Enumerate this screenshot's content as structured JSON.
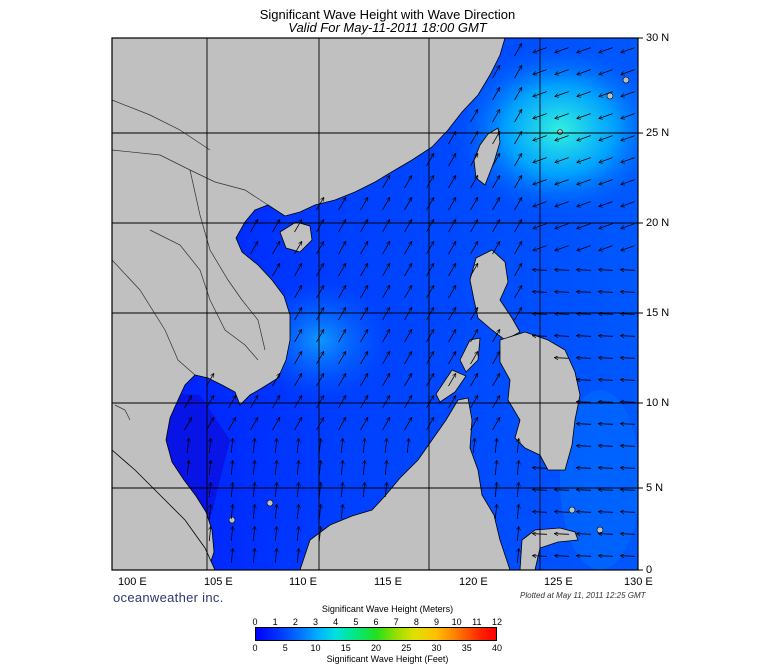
{
  "title": "Significant Wave Height with Wave Direction",
  "subtitle": "Valid For May-11-2011 18:00 GMT",
  "brand": "oceanweather inc.",
  "plotted": "Plotted at May 11, 2011 12:25 GMT",
  "lat_labels": [
    "30 N",
    "25 N",
    "20 N",
    "15 N",
    "10 N",
    "5 N",
    "0"
  ],
  "lon_labels": [
    "100 E",
    "105 E",
    "110 E",
    "115 E",
    "120 E",
    "125 E",
    "130 E"
  ],
  "legend": {
    "title_meters": "Significant Wave Height (Meters)",
    "title_feet": "Significant Wave Height (Feet)",
    "ticks_meters": [
      "0",
      "1",
      "2",
      "3",
      "4",
      "5",
      "6",
      "7",
      "8",
      "9",
      "10",
      "11",
      "12"
    ],
    "ticks_feet": [
      "0",
      "5",
      "10",
      "15",
      "20",
      "25",
      "30",
      "35",
      "40"
    ]
  },
  "colors": {
    "land": "#c0c0c0",
    "sea_low": "#0010ff",
    "sea_mid": "#0060ff",
    "sea_high": "#00c8ff"
  }
}
